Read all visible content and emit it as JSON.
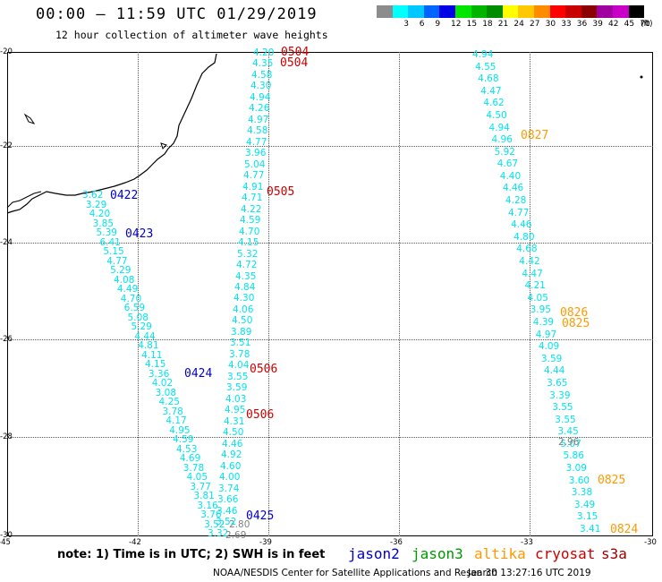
{
  "header": {
    "title": "00:00 – 11:59 UTC 01/29/2019",
    "subtitle": "12 hour collection of altimeter wave heights"
  },
  "legend": {
    "unit_label": "(ft)",
    "bins": [
      {
        "label": "",
        "color": "#8c8c8c"
      },
      {
        "label": "3",
        "color": "#00ffff"
      },
      {
        "label": "6",
        "color": "#00c8ff"
      },
      {
        "label": "9",
        "color": "#0064ff"
      },
      {
        "label": "12",
        "color": "#0000e6"
      },
      {
        "label": "15",
        "color": "#00e600"
      },
      {
        "label": "18",
        "color": "#00b400"
      },
      {
        "label": "21",
        "color": "#008c00"
      },
      {
        "label": "24",
        "color": "#ffff00"
      },
      {
        "label": "27",
        "color": "#ffc800"
      },
      {
        "label": "30",
        "color": "#ff8c00"
      },
      {
        "label": "33",
        "color": "#ff0000"
      },
      {
        "label": "36",
        "color": "#c80000"
      },
      {
        "label": "39",
        "color": "#8c0000"
      },
      {
        "label": "42",
        "color": "#a000a0"
      },
      {
        "label": "45",
        "color": "#c800c8"
      },
      {
        "label": "70",
        "color": "#000000"
      }
    ]
  },
  "axes": {
    "lat_labels": [
      "-20",
      "-22",
      "-24",
      "-26",
      "-28",
      "-30"
    ],
    "lon_labels": [
      "-45",
      "-42",
      "-39",
      "-36",
      "-33",
      "-30"
    ]
  },
  "colors": {
    "cyan": "#00e5ee",
    "gray": "#808080",
    "jason2": "#0000cc",
    "jason3": "#009900",
    "altika": "#ff9900",
    "cryosat": "#cc0000",
    "s3a": "#990000"
  },
  "tracks": {
    "track_a": {
      "time_labels": [
        {
          "text": "0422",
          "sat": "jason2"
        },
        {
          "text": "0423",
          "sat": "jason2"
        },
        {
          "text": "0424",
          "sat": "jason2"
        },
        {
          "text": "0425",
          "sat": "jason2"
        }
      ],
      "values": [
        "3.62",
        "3.29",
        "4.20",
        "3.85",
        "5.39",
        "6.41",
        "5.15",
        "4.77",
        "5.29",
        "4.08",
        "4.49",
        "4.70",
        "6.59",
        "5.08",
        "5.29",
        "4.44",
        "4.81",
        "4.11",
        "4.15",
        "3.36",
        "4.02",
        "3.08",
        "4.25",
        "3.78",
        "4.17",
        "4.95",
        "4.59",
        "4.53",
        "4.69",
        "3.78",
        "4.05",
        "3.77",
        "3.81",
        "3.16",
        "3.76",
        "3.52",
        "3.32"
      ],
      "gray_values": [
        "2.80",
        "2.69"
      ]
    },
    "track_b": {
      "time_labels": [
        {
          "text": "0504",
          "sat": "cryosat"
        },
        {
          "text": "0504",
          "sat": "cryosat"
        },
        {
          "text": "0505",
          "sat": "cryosat"
        },
        {
          "text": "0506",
          "sat": "cryosat"
        },
        {
          "text": "0506",
          "sat": "cryosat"
        }
      ],
      "values": [
        "4.20",
        "4.35",
        "4.58",
        "4.30",
        "4.94",
        "4.26",
        "4.97",
        "4.58",
        "4.77",
        "3.96",
        "5.04",
        "4.77",
        "4.91",
        "4.71",
        "4.22",
        "4.59",
        "4.70",
        "4.15",
        "5.32",
        "4.72",
        "4.35",
        "4.84",
        "4.30",
        "4.06",
        "4.50",
        "3.89",
        "3.51",
        "3.78",
        "4.04",
        "3.55",
        "3.59",
        "4.03",
        "4.95",
        "4.31",
        "4.50",
        "4.46",
        "4.92",
        "4.60",
        "4.00",
        "3.74",
        "3.66",
        "3.46",
        "3.52"
      ]
    },
    "track_c": {
      "time_labels": [
        {
          "text": "0827",
          "sat": "altika"
        },
        {
          "text": "0826",
          "sat": "altika"
        },
        {
          "text": "0825",
          "sat": "altika"
        },
        {
          "text": "0825",
          "sat": "altika"
        },
        {
          "text": "0824",
          "sat": "altika"
        }
      ],
      "values": [
        "4.94",
        "4.55",
        "4.68",
        "4.47",
        "4.62",
        "4.50",
        "4.94",
        "4.96",
        "5.92",
        "4.67",
        "4.40",
        "4.46",
        "4.28",
        "4.77",
        "4.46",
        "4.80",
        "4.68",
        "4.42",
        "4.47",
        "4.21",
        "4.05",
        "3.95",
        "4.39",
        "4.97",
        "4.09",
        "3.59",
        "4.44",
        "3.65",
        "3.39",
        "3.55",
        "3.55",
        "3.45",
        "5.07",
        "5.86",
        "3.09",
        "3.60",
        "3.38",
        "3.49",
        "3.15",
        "3.41"
      ],
      "gray_values": [
        "2.96"
      ]
    }
  },
  "footer": {
    "note": "note:  1) Time is in UTC;  2) SWH is in feet",
    "satellites": [
      {
        "name": "jason2",
        "color_key": "jason2"
      },
      {
        "name": "jason3",
        "color_key": "jason3"
      },
      {
        "name": "altika",
        "color_key": "altika"
      },
      {
        "name": "cryosat",
        "color_key": "cryosat"
      },
      {
        "name": "s3a",
        "color_key": "s3a"
      }
    ],
    "credit": "NOAA/NESDIS Center for Satellite Applications and Research",
    "timestamp": "Jan 30 13:27:16 UTC 2019"
  }
}
